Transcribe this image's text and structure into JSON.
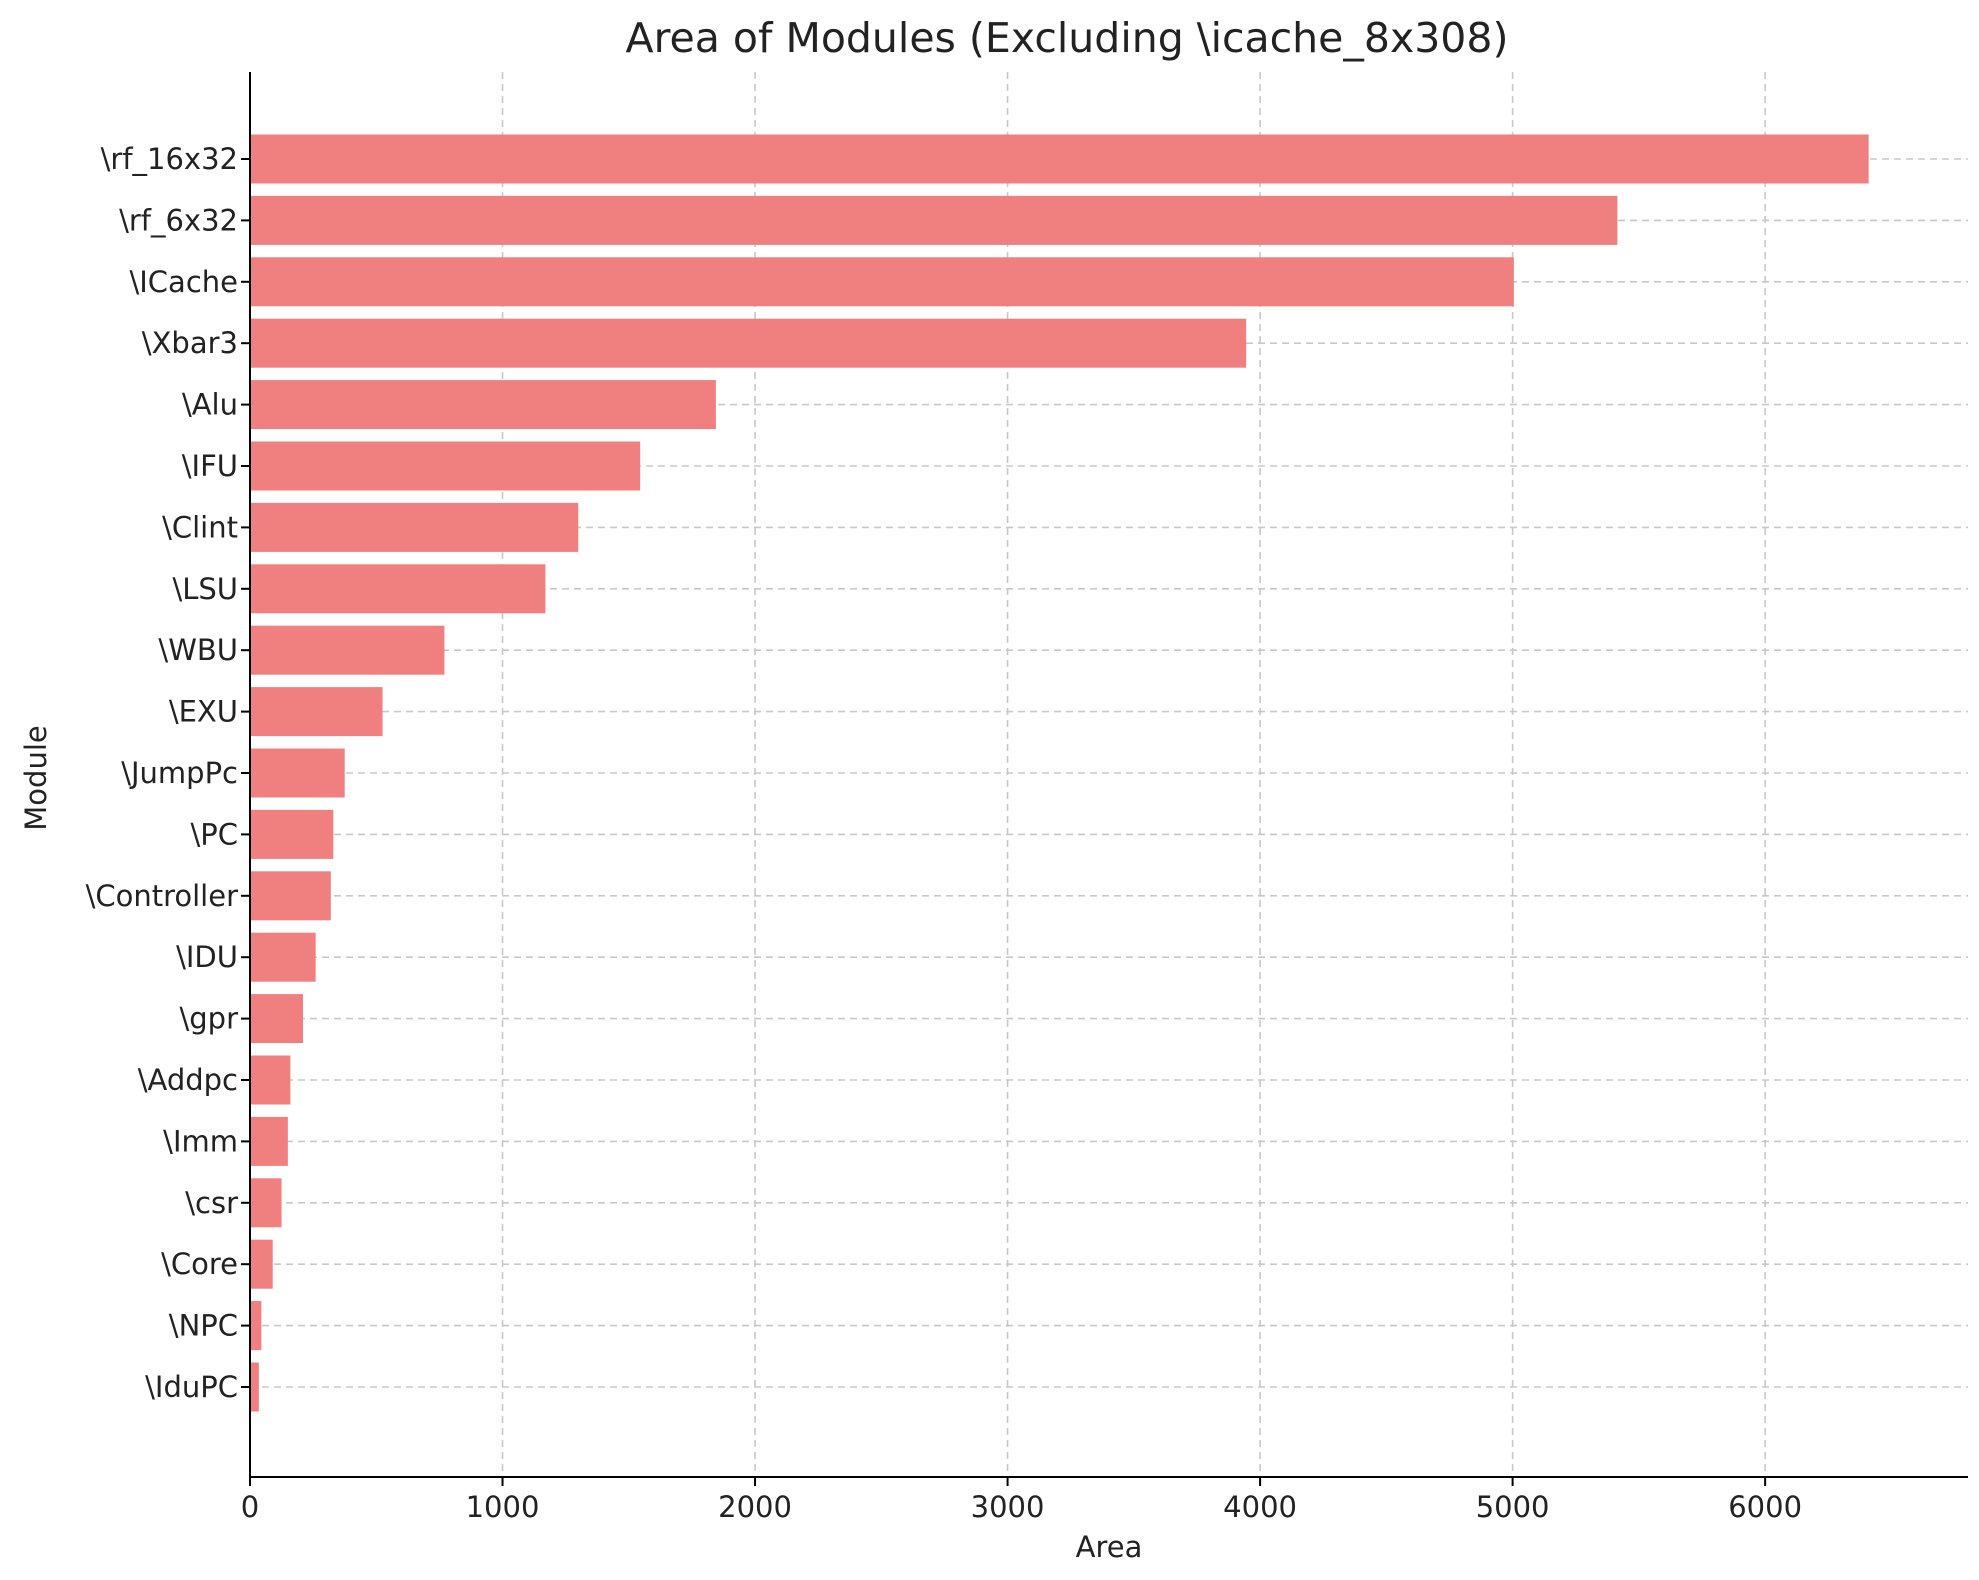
{
  "chart_data": {
    "type": "bar",
    "orientation": "horizontal",
    "title": "Area of Modules (Excluding \\icache_8x308)",
    "xlabel": "Area",
    "ylabel": "Module",
    "categories": [
      "\\rf_16x32",
      "\\rf_6x32",
      "\\ICache",
      "\\Xbar3",
      "\\Alu",
      "\\IFU",
      "\\Clint",
      "\\LSU",
      "\\WBU",
      "\\EXU",
      "\\JumpPc",
      "\\PC",
      "\\Controller",
      "\\IDU",
      "\\gpr",
      "\\Addpc",
      "\\Imm",
      "\\csr",
      "\\Core",
      "\\NPC",
      "\\IduPC"
    ],
    "values": [
      6410,
      5415,
      5005,
      3945,
      1845,
      1545,
      1300,
      1170,
      770,
      525,
      375,
      330,
      320,
      260,
      210,
      160,
      150,
      125,
      90,
      45,
      35
    ],
    "xlim": [
      0,
      6740
    ],
    "xticks": [
      "0",
      "1000",
      "2000",
      "3000",
      "4000",
      "5000",
      "6000"
    ],
    "grid": true,
    "bar_color": "#f08080"
  }
}
